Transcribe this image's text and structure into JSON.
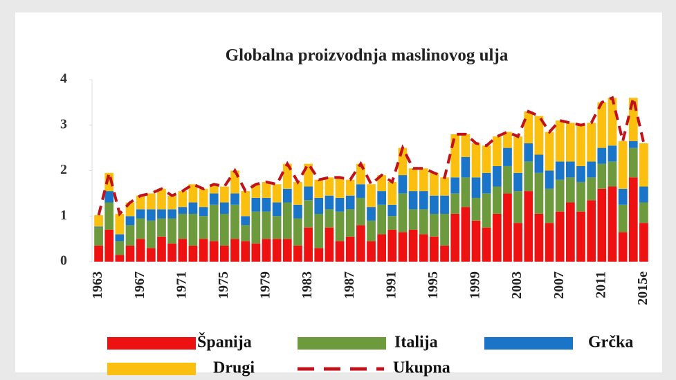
{
  "chart_data": {
    "type": "bar",
    "stacked": true,
    "title": "Globalna proizvodnja maslinovog ulja",
    "categories": [
      "1963",
      null,
      null,
      null,
      "1967",
      null,
      null,
      null,
      "1971",
      null,
      null,
      null,
      "1975",
      null,
      null,
      null,
      "1979",
      null,
      null,
      null,
      "1983",
      null,
      null,
      null,
      "1987",
      null,
      null,
      null,
      "1991",
      null,
      null,
      null,
      "1995",
      null,
      null,
      null,
      "1999",
      null,
      null,
      null,
      "2003",
      null,
      null,
      null,
      "2007",
      null,
      null,
      null,
      "2011",
      null,
      null,
      null,
      "2015e"
    ],
    "series": [
      {
        "name": "Španija",
        "color": "#ee1111",
        "values": [
          0.35,
          0.7,
          0.15,
          0.35,
          0.5,
          0.3,
          0.55,
          0.4,
          0.5,
          0.35,
          0.5,
          0.45,
          0.35,
          0.5,
          0.45,
          0.4,
          0.5,
          0.5,
          0.5,
          0.35,
          0.75,
          0.3,
          0.75,
          0.45,
          0.55,
          0.8,
          0.45,
          0.6,
          0.7,
          0.65,
          0.7,
          0.6,
          0.55,
          0.35,
          1.05,
          1.2,
          0.9,
          0.75,
          1.05,
          1.5,
          0.85,
          1.55,
          1.05,
          0.85,
          1.1,
          1.3,
          1.1,
          1.35,
          1.6,
          1.65,
          0.65,
          1.85,
          0.85
        ]
      },
      {
        "name": "Italija",
        "color": "#6e9a3e",
        "values": [
          0.4,
          0.6,
          0.3,
          0.45,
          0.45,
          0.6,
          0.4,
          0.55,
          0.55,
          0.7,
          0.5,
          0.8,
          0.7,
          0.75,
          0.35,
          0.7,
          0.6,
          0.5,
          0.8,
          0.6,
          0.6,
          0.75,
          0.4,
          0.65,
          0.6,
          0.6,
          0.45,
          0.65,
          0.3,
          0.85,
          0.45,
          0.55,
          0.5,
          0.7,
          0.45,
          0.65,
          0.5,
          0.75,
          0.6,
          0.6,
          0.7,
          0.65,
          0.9,
          0.75,
          0.7,
          0.55,
          0.65,
          0.5,
          0.55,
          0.55,
          0.6,
          0.65,
          0.45
        ]
      },
      {
        "name": "Grčka",
        "color": "#1a75c9",
        "values": [
          0.02,
          0.25,
          0.15,
          0.2,
          0.2,
          0.25,
          0.2,
          0.2,
          0.15,
          0.25,
          0.2,
          0.25,
          0.25,
          0.25,
          0.2,
          0.3,
          0.3,
          0.3,
          0.3,
          0.3,
          0.3,
          0.35,
          0.3,
          0.3,
          0.3,
          0.3,
          0.3,
          0.3,
          0.25,
          0.4,
          0.4,
          0.4,
          0.4,
          0.4,
          0.35,
          0.45,
          0.45,
          0.45,
          0.45,
          0.4,
          0.4,
          0.4,
          0.4,
          0.4,
          0.4,
          0.35,
          0.35,
          0.35,
          0.35,
          0.35,
          0.35,
          0.15,
          0.35
        ]
      },
      {
        "name": "Drugi",
        "color": "#fbbf10",
        "values": [
          0.25,
          0.4,
          0.45,
          0.3,
          0.3,
          0.35,
          0.45,
          0.3,
          0.35,
          0.4,
          0.4,
          0.2,
          0.35,
          0.5,
          0.55,
          0.3,
          0.35,
          0.4,
          0.55,
          0.5,
          0.5,
          0.4,
          0.4,
          0.45,
          0.35,
          0.45,
          0.5,
          0.35,
          0.5,
          0.6,
          0.5,
          0.5,
          0.5,
          0.4,
          0.95,
          0.5,
          0.75,
          0.6,
          0.65,
          0.35,
          0.8,
          0.7,
          0.85,
          0.85,
          0.9,
          0.85,
          0.9,
          0.85,
          1.0,
          1.05,
          1.05,
          0.95,
          0.95
        ]
      },
      {
        "name": "Ukupna",
        "type": "line",
        "dashed": true,
        "color": "#c0121b",
        "values": [
          1.02,
          1.95,
          1.05,
          1.3,
          1.45,
          1.5,
          1.6,
          1.45,
          1.55,
          1.7,
          1.6,
          1.7,
          1.65,
          2.0,
          1.55,
          1.7,
          1.75,
          1.7,
          2.15,
          1.75,
          2.15,
          1.8,
          1.85,
          1.85,
          1.8,
          2.15,
          1.7,
          1.9,
          1.75,
          2.5,
          2.05,
          2.05,
          1.95,
          1.85,
          2.8,
          2.8,
          2.6,
          2.55,
          2.75,
          2.85,
          2.75,
          3.3,
          3.2,
          2.85,
          3.1,
          3.05,
          3.0,
          3.05,
          3.5,
          3.6,
          2.65,
          3.6,
          2.6
        ]
      }
    ],
    "ylim": [
      0,
      4
    ],
    "yticks": [
      0,
      1,
      2,
      3,
      4
    ],
    "grid": false
  }
}
